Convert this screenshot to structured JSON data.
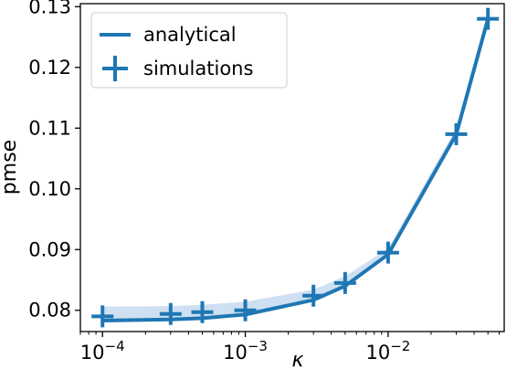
{
  "chart_data": {
    "type": "line",
    "xscale": "log",
    "xlabel": "κ",
    "ylabel": "pmse",
    "xlim": [
      7e-05,
      0.065
    ],
    "ylim": [
      0.0765,
      0.1305
    ],
    "x_ticks": [
      {
        "value": 0.0001,
        "base": "10",
        "exp": "−4"
      },
      {
        "value": 0.001,
        "base": "10",
        "exp": "−3"
      },
      {
        "value": 0.01,
        "base": "10",
        "exp": "−2"
      }
    ],
    "y_ticks": [
      {
        "value": 0.08,
        "label": "0.08"
      },
      {
        "value": 0.09,
        "label": "0.09"
      },
      {
        "value": 0.1,
        "label": "0.10"
      },
      {
        "value": 0.11,
        "label": "0.11"
      },
      {
        "value": 0.12,
        "label": "0.12"
      },
      {
        "value": 0.13,
        "label": "0.13"
      }
    ],
    "legend_position": "top-left",
    "color": "#1f77b4",
    "band_color": "#c6dbef",
    "series": [
      {
        "name": "analytical",
        "style": "line",
        "x": [
          0.0001,
          0.0003,
          0.0005,
          0.001,
          0.003,
          0.005,
          0.01,
          0.03,
          0.05
        ],
        "y": [
          0.0783,
          0.0785,
          0.0787,
          0.0793,
          0.0817,
          0.084,
          0.0892,
          0.109,
          0.128
        ]
      },
      {
        "name": "simulations",
        "style": "marker",
        "x": [
          0.0001,
          0.0003,
          0.0005,
          0.001,
          0.003,
          0.005,
          0.01,
          0.03,
          0.05
        ],
        "y": [
          0.079,
          0.0794,
          0.0797,
          0.08,
          0.0824,
          0.0845,
          0.0895,
          0.109,
          0.128
        ]
      }
    ],
    "band": {
      "x": [
        0.0001,
        0.0003,
        0.0005,
        0.001,
        0.003,
        0.005,
        0.01,
        0.03,
        0.05
      ],
      "upper": [
        0.0806,
        0.0807,
        0.0809,
        0.0814,
        0.0834,
        0.0856,
        0.0902,
        0.11,
        0.1282
      ],
      "lower": [
        0.0782,
        0.0784,
        0.0786,
        0.0792,
        0.0816,
        0.0838,
        0.089,
        0.1088,
        0.1278
      ]
    }
  }
}
